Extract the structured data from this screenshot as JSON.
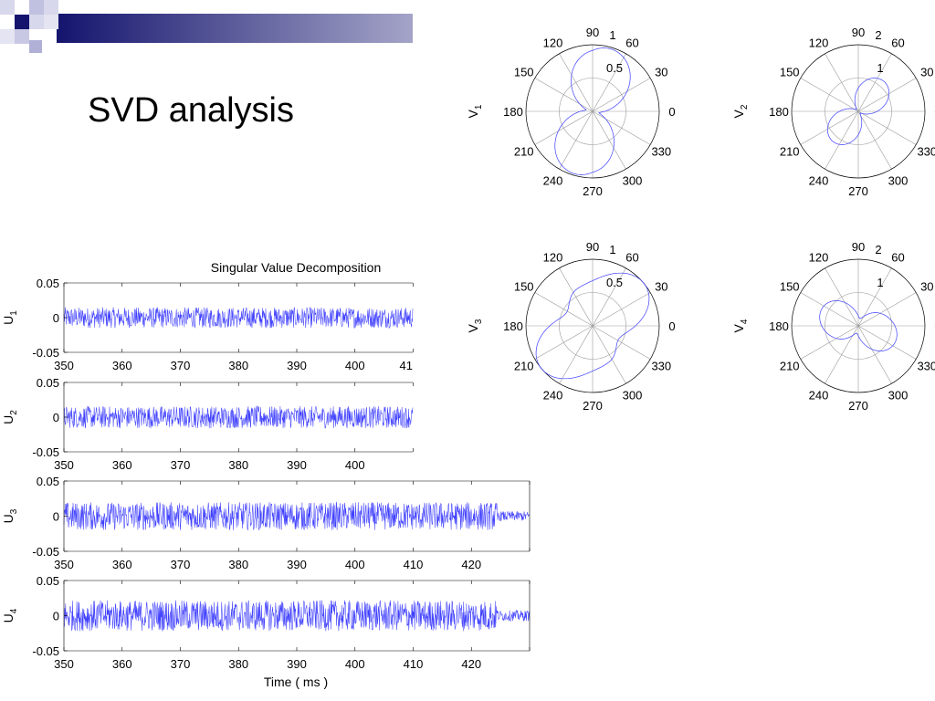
{
  "slide": {
    "title": "SVD analysis"
  },
  "colors": {
    "trace": "#4040ff",
    "axis": "#000000",
    "grid": "#9a9a9a",
    "deco_dark": "#14146e",
    "deco_light": "#b8b8dc"
  },
  "chart_data": [
    {
      "type": "line",
      "title": "Singular Value Decomposition",
      "xlabel": "Time  ( ms )",
      "xlim": [
        350,
        430
      ],
      "x_ticks": [
        350,
        360,
        370,
        380,
        390,
        400,
        410,
        420,
        430
      ],
      "y_ticks": [
        -0.05,
        0,
        0.05
      ],
      "y_tick_labels": [
        "-0.05",
        "0",
        "0.05"
      ],
      "ylim": [
        -0.05,
        0.05
      ],
      "series": [
        {
          "name": "U1",
          "label_main": "U",
          "label_sub": "1",
          "amplitude": 0.015
        },
        {
          "name": "U2",
          "label_main": "U",
          "label_sub": "2",
          "amplitude": 0.016
        },
        {
          "name": "U3",
          "label_main": "U",
          "label_sub": "3",
          "amplitude": 0.02
        },
        {
          "name": "U4",
          "label_main": "U",
          "label_sub": "4",
          "amplitude": 0.022
        }
      ]
    },
    {
      "type": "polar",
      "angle_labels": [
        "0",
        "30",
        "60",
        "90",
        "120",
        "150",
        "180",
        "210",
        "240",
        "270",
        "300",
        "330"
      ],
      "plots": [
        {
          "name": "V1",
          "label_main": "V",
          "label_sub": "1",
          "rmax": 1,
          "ring_labels": [
            "0.5",
            "1"
          ]
        },
        {
          "name": "V2",
          "label_main": "V",
          "label_sub": "2",
          "rmax": 2,
          "ring_labels": [
            "1",
            "2"
          ]
        },
        {
          "name": "V3",
          "label_main": "V",
          "label_sub": "3",
          "rmax": 1,
          "ring_labels": [
            "0.5",
            "1"
          ]
        },
        {
          "name": "V4",
          "label_main": "V",
          "label_sub": "4",
          "rmax": 2,
          "ring_labels": [
            "1",
            "2"
          ]
        }
      ]
    }
  ]
}
